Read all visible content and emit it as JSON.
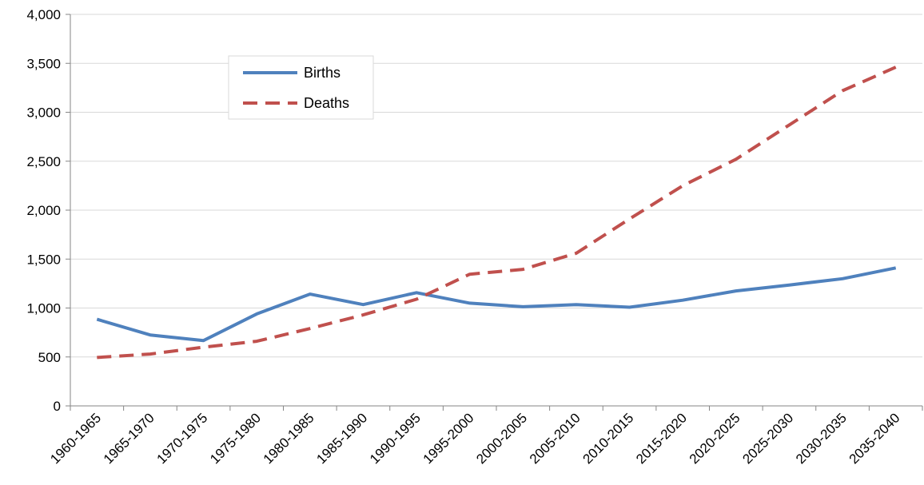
{
  "chart_data": {
    "type": "line",
    "categories": [
      "1960-1965",
      "1965-1970",
      "1970-1975",
      "1975-1980",
      "1980-1985",
      "1985-1990",
      "1990-1995",
      "1995-2000",
      "2000-2005",
      "2005-2010",
      "2010-2015",
      "2015-2020",
      "2020-2025",
      "2025-2030",
      "2030-2035",
      "2035-2040"
    ],
    "series": [
      {
        "name": "Births",
        "color": "#4F81BD",
        "dash": "solid",
        "values": [
          885,
          725,
          668,
          940,
          1142,
          1035,
          1157,
          1050,
          1013,
          1035,
          1008,
          1080,
          1175,
          1235,
          1300,
          1410
        ]
      },
      {
        "name": "Deaths",
        "color": "#C0504D",
        "dash": "dashed",
        "values": [
          495,
          530,
          600,
          660,
          790,
          930,
          1090,
          1345,
          1395,
          1560,
          1910,
          2250,
          2520,
          2870,
          3220,
          3460
        ]
      }
    ],
    "yticks": [
      "0",
      "500",
      "1,000",
      "1,500",
      "2,000",
      "2,500",
      "3,000",
      "3,500",
      "4,000"
    ],
    "ylim": [
      0,
      4000
    ],
    "grid": true,
    "legend_position": "top-left-inset",
    "title": "",
    "xlabel": "",
    "ylabel": ""
  }
}
